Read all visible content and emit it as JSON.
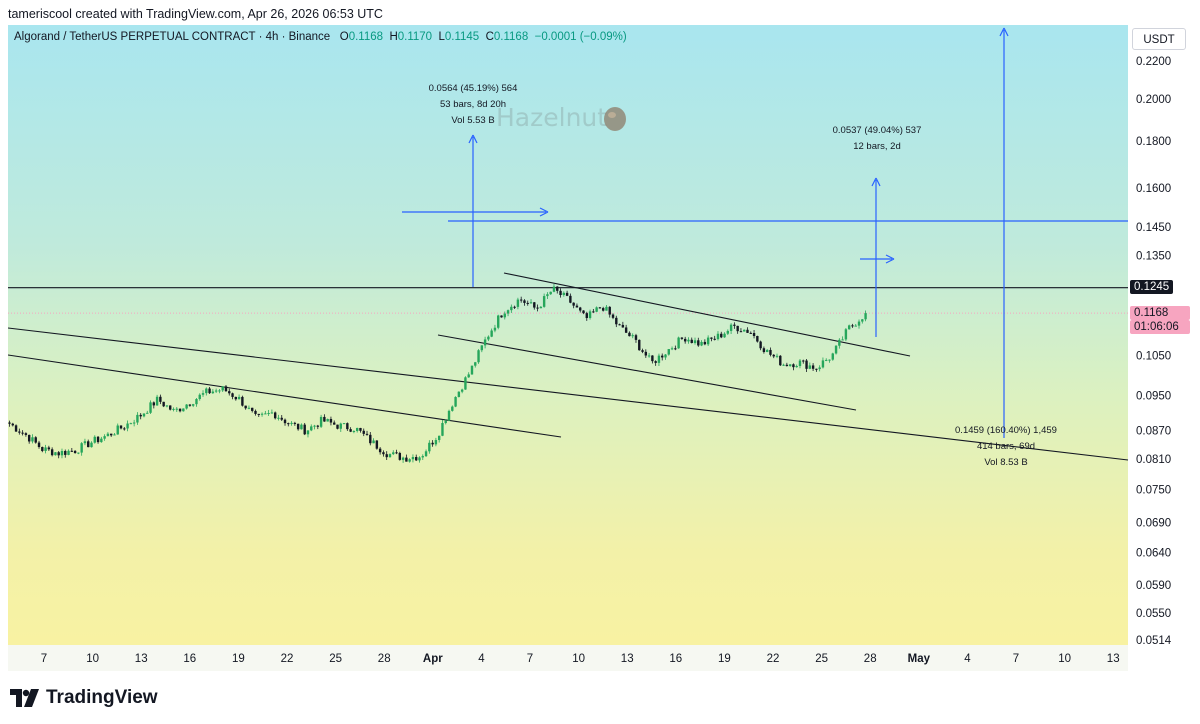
{
  "header": "tameriscool created with TradingView.com, Apr 26, 2026 06:53 UTC",
  "legend": {
    "symbol": "Algorand / TetherUS PERPETUAL CONTRACT · 4h · Binance",
    "o_label": "O",
    "o": "0.1168",
    "h_label": "H",
    "h": "0.1170",
    "l_label": "L",
    "l": "0.1145",
    "c_label": "C",
    "c": "0.1168",
    "change": "−0.0001 (−0.09%)"
  },
  "currency": "USDT",
  "watermark": "Hazelnut",
  "price_tags": {
    "level": "0.1245",
    "last": "0.1168",
    "countdown": "01:06:06"
  },
  "measure_1": [
    "0.0564 (45.19%) 564",
    "53 bars, 8d 20h",
    "Vol 5.53 B"
  ],
  "measure_2": [
    "0.0537 (49.04%) 537",
    "12 bars, 2d"
  ],
  "measure_3": [
    "0.1459 (160.40%) 1,459",
    "414 bars, 69d",
    "Vol 8.53 B"
  ],
  "footer_logo_text": "TradingView",
  "colors": {
    "up": "#26a65b",
    "down": "#131722",
    "tool": "#2962ff",
    "tag_pink": "#f7a5c0"
  },
  "chart_data": {
    "type": "candlestick",
    "interval": "4h",
    "ylabels": [
      "0.2200",
      "0.2000",
      "0.1800",
      "0.1600",
      "0.1450",
      "0.1350",
      "0.1050",
      "0.0950",
      "0.0870",
      "0.0810",
      "0.0750",
      "0.0690",
      "0.0640",
      "0.0590",
      "0.0550",
      "0.0514"
    ],
    "xlabels": [
      "7",
      "10",
      "13",
      "16",
      "19",
      "22",
      "25",
      "28",
      "Apr",
      "4",
      "7",
      "10",
      "13",
      "16",
      "19",
      "22",
      "25",
      "28",
      "May",
      "4",
      "7",
      "10",
      "13"
    ],
    "close_path": [
      0.0885,
      0.086,
      0.083,
      0.0822,
      0.0828,
      0.0845,
      0.086,
      0.088,
      0.0905,
      0.094,
      0.0912,
      0.0935,
      0.0958,
      0.0965,
      0.094,
      0.0895,
      0.091,
      0.0885,
      0.087,
      0.0892,
      0.088,
      0.0875,
      0.0845,
      0.082,
      0.0812,
      0.0816,
      0.086,
      0.094,
      0.101,
      0.11,
      0.1175,
      0.121,
      0.118,
      0.124,
      0.1205,
      0.115,
      0.119,
      0.113,
      0.109,
      0.103,
      0.1065,
      0.11,
      0.108,
      0.11,
      0.113,
      0.1115,
      0.106,
      0.1028,
      0.1032,
      0.1018,
      0.1052,
      0.1125,
      0.1168
    ],
    "level_line": 0.1245,
    "last_price": 0.1168
  }
}
